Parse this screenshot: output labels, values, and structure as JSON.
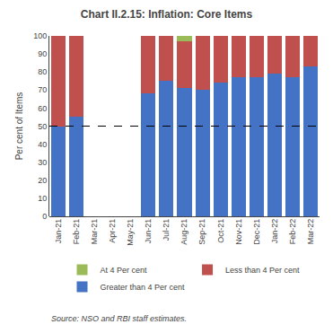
{
  "chart_data": {
    "type": "bar",
    "stacked": true,
    "title": "Chart II.2.15: Inflation: Core Items",
    "ylabel": "Per cent of Items",
    "annotations": [
      "Source: NSO and RBI staff estimates."
    ],
    "categories": [
      "Jan-21",
      "Feb-21",
      "Mar-21",
      "Apr-21",
      "May-21",
      "Jun-21",
      "Jul-21",
      "Aug-21",
      "Sep-21",
      "Oct-21",
      "Nov-21",
      "Dec-21",
      "Jan-22",
      "Feb-22",
      "Mar-22"
    ],
    "series": [
      {
        "name": "Greater than 4 Per cent",
        "color": "#4472C4",
        "values": [
          50,
          55,
          0,
          0,
          0,
          68,
          75,
          71,
          70,
          74,
          77,
          77,
          79,
          77,
          83
        ]
      },
      {
        "name": "Less than 4 Per cent",
        "color": "#C0504D",
        "values": [
          50,
          45,
          0,
          0,
          0,
          32,
          25,
          26,
          30,
          26,
          23,
          23,
          21,
          23,
          17
        ]
      },
      {
        "name": "At 4 Per cent",
        "color": "#9BBB59",
        "values": [
          0,
          0,
          0,
          0,
          0,
          0,
          0,
          3,
          0,
          0,
          0,
          0,
          0,
          0,
          0
        ]
      }
    ],
    "reference_lines": [
      {
        "y": 50,
        "line_style": "dashed"
      }
    ],
    "ylim": [
      0,
      100
    ],
    "yticks": [
      0,
      10,
      20,
      30,
      40,
      50,
      60,
      70,
      80,
      90,
      100
    ],
    "grid": false,
    "legend": "bottom"
  }
}
